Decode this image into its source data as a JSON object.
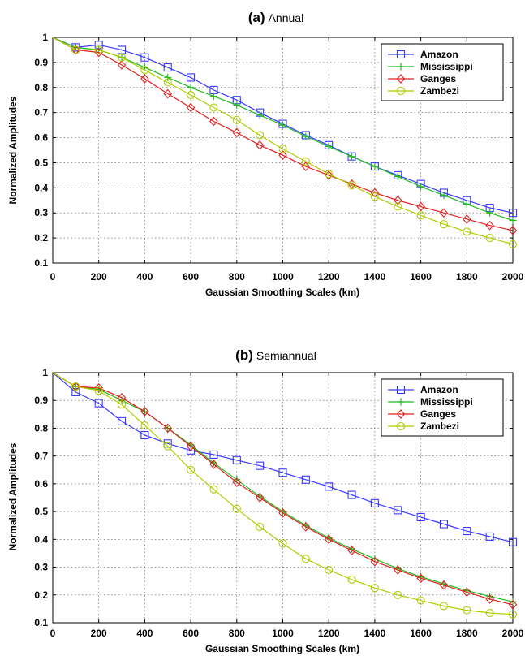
{
  "chart_data": [
    {
      "type": "line",
      "title_prefix": "(a)",
      "title": "Annual",
      "xlabel": "Gaussian Smoothing Scales (km)",
      "ylabel": "Normalized Amplitudes",
      "xlim": [
        0,
        2000
      ],
      "ylim": [
        0.1,
        1
      ],
      "xticks": [
        "0",
        "200",
        "400",
        "600",
        "800",
        "1000",
        "1200",
        "1400",
        "1600",
        "1800",
        "2000"
      ],
      "yticks": [
        "0.1",
        "0.2",
        "0.3",
        "0.4",
        "0.5",
        "0.6",
        "0.7",
        "0.8",
        "0.9",
        "1"
      ],
      "grid": true,
      "legend_position": "top-right",
      "x": [
        0,
        100,
        200,
        300,
        400,
        500,
        600,
        700,
        800,
        900,
        1000,
        1100,
        1200,
        1300,
        1400,
        1500,
        1600,
        1700,
        1800,
        1900,
        2000
      ],
      "series": [
        {
          "name": "Amazon",
          "color": "#3a3aff",
          "marker": "square",
          "values": [
            1.0,
            0.96,
            0.97,
            0.95,
            0.92,
            0.88,
            0.84,
            0.79,
            0.75,
            0.7,
            0.655,
            0.61,
            0.57,
            0.525,
            0.485,
            0.45,
            0.415,
            0.38,
            0.35,
            0.32,
            0.3
          ]
        },
        {
          "name": "Mississippi",
          "color": "#22bb22",
          "marker": "plus",
          "values": [
            1.0,
            0.96,
            0.95,
            0.92,
            0.88,
            0.84,
            0.8,
            0.765,
            0.73,
            0.69,
            0.65,
            0.605,
            0.565,
            0.525,
            0.485,
            0.445,
            0.405,
            0.37,
            0.335,
            0.3,
            0.27
          ]
        },
        {
          "name": "Ganges",
          "color": "#e02020",
          "marker": "diamond",
          "values": [
            1.0,
            0.95,
            0.94,
            0.89,
            0.835,
            0.775,
            0.72,
            0.665,
            0.62,
            0.57,
            0.53,
            0.485,
            0.45,
            0.415,
            0.38,
            0.35,
            0.325,
            0.3,
            0.275,
            0.25,
            0.23
          ]
        },
        {
          "name": "Zambezi",
          "color": "#b0cc00",
          "marker": "circle",
          "values": [
            1.0,
            0.95,
            0.95,
            0.92,
            0.87,
            0.82,
            0.77,
            0.72,
            0.67,
            0.61,
            0.555,
            0.505,
            0.455,
            0.41,
            0.365,
            0.325,
            0.29,
            0.255,
            0.225,
            0.2,
            0.175
          ]
        }
      ]
    },
    {
      "type": "line",
      "title_prefix": "(b)",
      "title": "Semiannual",
      "xlabel": "Gaussian Smoothing Scales (km)",
      "ylabel": "Normalized Amplitudes",
      "xlim": [
        0,
        2000
      ],
      "ylim": [
        0.1,
        1
      ],
      "xticks": [
        "0",
        "200",
        "400",
        "600",
        "800",
        "1000",
        "1200",
        "1400",
        "1600",
        "1800",
        "2000"
      ],
      "yticks": [
        "0.1",
        "0.2",
        "0.3",
        "0.4",
        "0.5",
        "0.6",
        "0.7",
        "0.8",
        "0.9",
        "1"
      ],
      "grid": true,
      "legend_position": "top-right",
      "x": [
        0,
        100,
        200,
        300,
        400,
        500,
        600,
        700,
        800,
        900,
        1000,
        1100,
        1200,
        1300,
        1400,
        1500,
        1600,
        1700,
        1800,
        1900,
        2000
      ],
      "series": [
        {
          "name": "Amazon",
          "color": "#3a3aff",
          "marker": "square",
          "values": [
            1.0,
            0.93,
            0.89,
            0.825,
            0.775,
            0.745,
            0.72,
            0.705,
            0.685,
            0.665,
            0.64,
            0.615,
            0.59,
            0.56,
            0.53,
            0.505,
            0.48,
            0.455,
            0.43,
            0.41,
            0.39
          ]
        },
        {
          "name": "Mississippi",
          "color": "#22bb22",
          "marker": "plus",
          "values": [
            1.0,
            0.95,
            0.94,
            0.9,
            0.86,
            0.8,
            0.74,
            0.675,
            0.615,
            0.555,
            0.5,
            0.45,
            0.405,
            0.365,
            0.33,
            0.295,
            0.265,
            0.24,
            0.215,
            0.195,
            0.175
          ]
        },
        {
          "name": "Ganges",
          "color": "#e02020",
          "marker": "diamond",
          "values": [
            1.0,
            0.95,
            0.945,
            0.91,
            0.86,
            0.8,
            0.735,
            0.67,
            0.605,
            0.55,
            0.495,
            0.445,
            0.4,
            0.36,
            0.32,
            0.29,
            0.26,
            0.235,
            0.21,
            0.185,
            0.165
          ]
        },
        {
          "name": "Zambezi",
          "color": "#b0cc00",
          "marker": "circle",
          "values": [
            1.0,
            0.95,
            0.935,
            0.885,
            0.81,
            0.735,
            0.65,
            0.58,
            0.51,
            0.445,
            0.385,
            0.33,
            0.29,
            0.255,
            0.225,
            0.2,
            0.18,
            0.16,
            0.145,
            0.135,
            0.13
          ]
        }
      ]
    }
  ]
}
